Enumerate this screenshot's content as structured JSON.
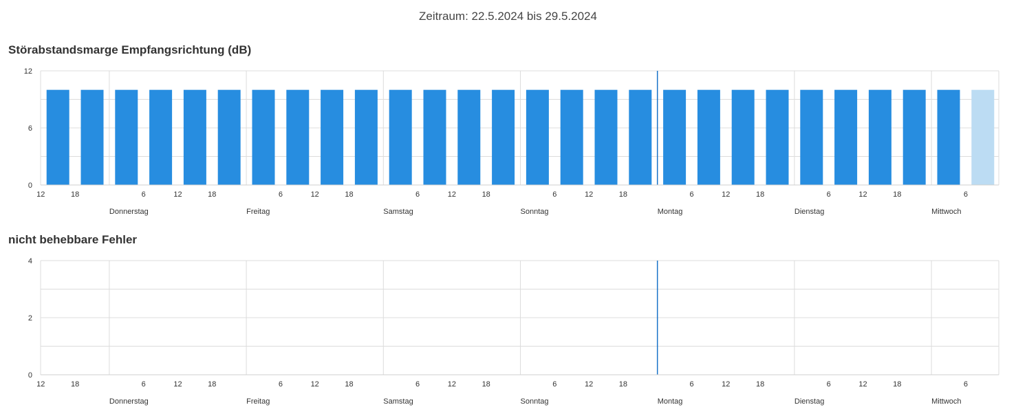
{
  "header": {
    "period": "Zeitraum: 22.5.2024 bis 29.5.2024"
  },
  "chart_data": [
    {
      "type": "bar",
      "title": "Störabstandsmarge Empfangsrichtung (dB)",
      "ylim": [
        0,
        12
      ],
      "yticks": [
        0,
        6,
        12
      ],
      "grid": true,
      "x_start": "2024-05-22 12:00",
      "hour_ticks": [
        "12",
        "18",
        "6",
        "12",
        "18",
        "6",
        "12",
        "18",
        "6",
        "12",
        "18",
        "6",
        "12",
        "18",
        "6",
        "12",
        "18",
        "6",
        "12",
        "18",
        "6"
      ],
      "day_labels": [
        "Donnerstag",
        "Freitag",
        "Samstag",
        "Sonntag",
        "Montag",
        "Dienstag",
        "Mittwoch"
      ],
      "bar_hours": [
        "12",
        "18",
        "0",
        "6",
        "12",
        "18",
        "0",
        "6",
        "12",
        "18",
        "0",
        "6",
        "12",
        "18",
        "0",
        "6",
        "12",
        "18",
        "0",
        "6",
        "12",
        "18",
        "0",
        "6",
        "12",
        "18",
        "0",
        "6"
      ],
      "values": [
        10,
        10,
        10,
        10,
        10,
        10,
        10,
        10,
        10,
        10,
        10,
        10,
        10,
        10,
        10,
        10,
        10,
        10,
        10,
        10,
        10,
        10,
        10,
        10,
        10,
        10,
        10,
        10
      ],
      "highlight_last_bar": true,
      "marker_day": "Montag",
      "colors": {
        "bar": "#278de0",
        "bar_pending": "#bcdcf3",
        "marker": "#1a73c8",
        "grid": "#dcdcdc"
      }
    },
    {
      "type": "bar",
      "title": "nicht behebbare Fehler",
      "ylim": [
        0,
        4
      ],
      "yticks": [
        0,
        2,
        4
      ],
      "grid": true,
      "x_start": "2024-05-22 12:00",
      "hour_ticks": [
        "12",
        "18",
        "6",
        "12",
        "18",
        "6",
        "12",
        "18",
        "6",
        "12",
        "18",
        "6",
        "12",
        "18",
        "6",
        "12",
        "18",
        "6",
        "12",
        "18",
        "6"
      ],
      "day_labels": [
        "Donnerstag",
        "Freitag",
        "Samstag",
        "Sonntag",
        "Montag",
        "Dienstag",
        "Mittwoch"
      ],
      "values": [],
      "marker_day": "Montag",
      "colors": {
        "marker": "#1a73c8",
        "grid": "#dcdcdc"
      }
    }
  ]
}
